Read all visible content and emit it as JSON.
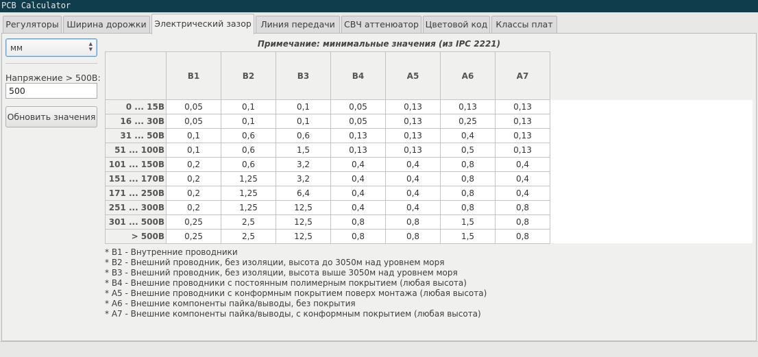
{
  "window": {
    "title": "PCB Calculator"
  },
  "tabs": [
    {
      "label": "Регуляторы"
    },
    {
      "label": "Ширина дорожки"
    },
    {
      "label": "Электрический зазор"
    },
    {
      "label": "Линия передачи"
    },
    {
      "label": "СВЧ аттенюатор"
    },
    {
      "label": "Цветовой код"
    },
    {
      "label": "Классы плат"
    }
  ],
  "active_tab": "Электрический зазор",
  "sidebar": {
    "unit_value": "мм",
    "voltage_label": "Напряжение > 500В:",
    "voltage_value": "500",
    "update_button": "Обновить значения"
  },
  "note": "Примечание: минимальные значения (из IPC 2221)",
  "table": {
    "columns": [
      "B1",
      "B2",
      "B3",
      "B4",
      "A5",
      "A6",
      "A7"
    ],
    "rows": [
      {
        "label": "0 ... 15В",
        "values": [
          "0,05",
          "0,1",
          "0,1",
          "0,05",
          "0,13",
          "0,13",
          "0,13"
        ]
      },
      {
        "label": "16 ... 30В",
        "values": [
          "0,05",
          "0,1",
          "0,1",
          "0,05",
          "0,13",
          "0,25",
          "0,13"
        ]
      },
      {
        "label": "31 ... 50В",
        "values": [
          "0,1",
          "0,6",
          "0,6",
          "0,13",
          "0,13",
          "0,4",
          "0,13"
        ]
      },
      {
        "label": "51 ... 100В",
        "values": [
          "0,1",
          "0,6",
          "1,5",
          "0,13",
          "0,13",
          "0,5",
          "0,13"
        ]
      },
      {
        "label": "101 ... 150В",
        "values": [
          "0,2",
          "0,6",
          "3,2",
          "0,4",
          "0,4",
          "0,8",
          "0,4"
        ]
      },
      {
        "label": "151 ... 170В",
        "values": [
          "0,2",
          "1,25",
          "3,2",
          "0,4",
          "0,4",
          "0,8",
          "0,4"
        ]
      },
      {
        "label": "171 ... 250В",
        "values": [
          "0,2",
          "1,25",
          "6,4",
          "0,4",
          "0,4",
          "0,8",
          "0,4"
        ]
      },
      {
        "label": "251 ... 300В",
        "values": [
          "0,2",
          "1,25",
          "12,5",
          "0,4",
          "0,4",
          "0,8",
          "0,8"
        ]
      },
      {
        "label": "301 ... 500В",
        "values": [
          "0,25",
          "2,5",
          "12,5",
          "0,8",
          "0,8",
          "1,5",
          "0,8"
        ]
      },
      {
        "label": "> 500В",
        "values": [
          "0,25",
          "2,5",
          "12,5",
          "0,8",
          "0,8",
          "1,5",
          "0,8"
        ]
      }
    ]
  },
  "legend": [
    "*  B1 - Внутренние проводники",
    "*  B2 - Внешний проводник, без изоляции, высота до 3050м над уровнем моря",
    "*  B3 - Внешний проводник, без изоляции, высота выше 3050м над уровнем моря",
    "*  B4 - Внешние проводники с постоянным полимерным покрытием (любая высота)",
    "*  A5 - Внешние проводники с конформным покрытием поверх монтажа (любая высота)",
    "*  A6 - Внешние компоненты пайка/выводы, без покрытия",
    "*  A7 - Внешние компоненты пайка/выводы, с конформным покрытием (любая высота)"
  ],
  "icons": {
    "select_arrows": "spin-arrows-icon"
  }
}
